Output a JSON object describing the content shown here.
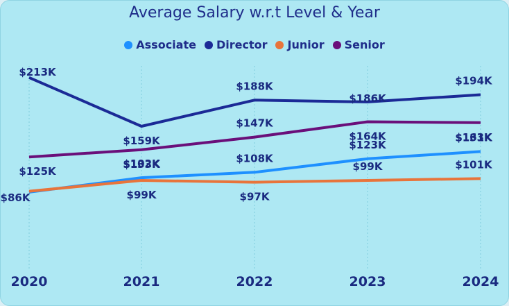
{
  "chart_data": {
    "type": "line",
    "title": "Average Salary w.r.t Level & Year",
    "x": [
      "2020",
      "2021",
      "2022",
      "2023",
      "2024"
    ],
    "series": [
      {
        "name": "Associate",
        "color": "#1e90ff",
        "values": [
          86,
          102,
          108,
          123,
          131
        ],
        "labels": [
          "$86K",
          "$102K",
          "$108K",
          "$123K",
          "$131K"
        ]
      },
      {
        "name": "Director",
        "color": "#1b2a96",
        "values": [
          213,
          159,
          188,
          186,
          194
        ],
        "labels": [
          "$213K",
          "$159K",
          "$188K",
          "$186K",
          "$194K"
        ]
      },
      {
        "name": "Junior",
        "color": "#e8743b",
        "values": [
          87,
          99,
          97,
          99,
          101
        ],
        "labels": [
          "",
          "$99K",
          "$97K",
          "$99K",
          "$101K"
        ]
      },
      {
        "name": "Senior",
        "color": "#6a0f7a",
        "values": [
          125,
          133,
          147,
          164,
          163
        ],
        "labels": [
          "$125K",
          "$133K",
          "$147K",
          "$164K",
          "$163K"
        ]
      }
    ],
    "legend_position": "top-center",
    "grid": false
  }
}
